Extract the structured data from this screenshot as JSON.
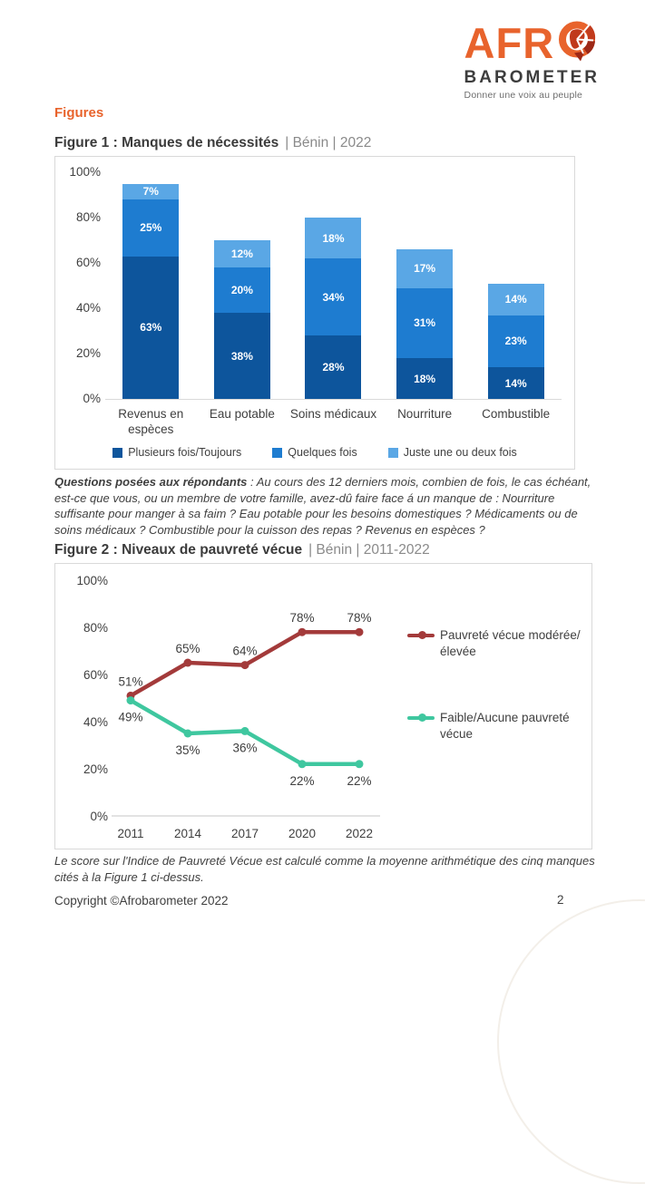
{
  "logo": {
    "afro": "AFR",
    "o_icon": "africa-globe",
    "barometer": "BAROMETER",
    "tagline": "Donner une voix au peuple",
    "orange": "#e8632c",
    "dark": "#3d3d3d"
  },
  "page": {
    "section_heading": "Figures",
    "footer_copyright": "Copyright ©Afrobarometer 2022",
    "page_number": "2"
  },
  "figure1": {
    "title_bold": "Figure 1 : Manques de nécessités",
    "title_meta": "| Bénin | 2022",
    "questions_lead": "Questions posées aux répondants",
    "questions_text": " : Au cours des 12 derniers mois, combien de fois, le cas échéant, est-ce que vous, ou un membre de votre famille, avez-dû faire face á un manque de : Nourriture suffisante pour manger à sa faim ? Eau potable pour les besoins domestiques ? Médicaments ou de soins médicaux ? Combustible pour la cuisson des repas ? Revenus en espèces ?"
  },
  "figure2": {
    "title_bold": "Figure 2 : Niveaux de pauvreté vécue",
    "title_meta": "| Bénin | 2011-2022",
    "note": "Le score sur l'Indice de Pauvreté Vécue est calculé comme la moyenne arithmétique des cinq manques cités à la Figure 1 ci-dessus."
  },
  "chart_data": [
    {
      "type": "bar",
      "stacked": true,
      "title": "Manques de nécessités | Bénin | 2022",
      "categories": [
        "Revenus en espèces",
        "Eau potable",
        "Soins médicaux",
        "Nourriture",
        "Combustible"
      ],
      "series": [
        {
          "name": "Plusieurs fois/Toujours",
          "color": "#0d559c",
          "values": [
            63,
            38,
            28,
            18,
            14
          ]
        },
        {
          "name": "Quelques fois",
          "color": "#1e7cd0",
          "values": [
            25,
            20,
            34,
            31,
            23
          ]
        },
        {
          "name": "Juste une ou deux fois",
          "color": "#5aa7e5",
          "values": [
            7,
            12,
            18,
            17,
            14
          ]
        }
      ],
      "ylim": [
        0,
        100
      ],
      "yticks": [
        "100%",
        "80%",
        "60%",
        "40%",
        "20%",
        "0%"
      ],
      "grid": false,
      "legend_position": "bottom",
      "value_suffix": "%"
    },
    {
      "type": "line",
      "title": "Niveaux de pauvreté vécue | Bénin | 2011-2022",
      "x": [
        "2011",
        "2014",
        "2017",
        "2020",
        "2022"
      ],
      "series": [
        {
          "name": "Pauvreté vécue modérée/élevée",
          "color": "#a33a3a",
          "values": [
            51,
            65,
            64,
            78,
            78
          ]
        },
        {
          "name": "Faible/Aucune pauvreté vécue",
          "color": "#3fc79f",
          "values": [
            49,
            35,
            36,
            22,
            22
          ]
        }
      ],
      "ylim": [
        0,
        100
      ],
      "yticks": [
        "100%",
        "80%",
        "60%",
        "40%",
        "20%",
        "0%"
      ],
      "grid": false,
      "legend_position": "right",
      "value_suffix": "%"
    }
  ]
}
